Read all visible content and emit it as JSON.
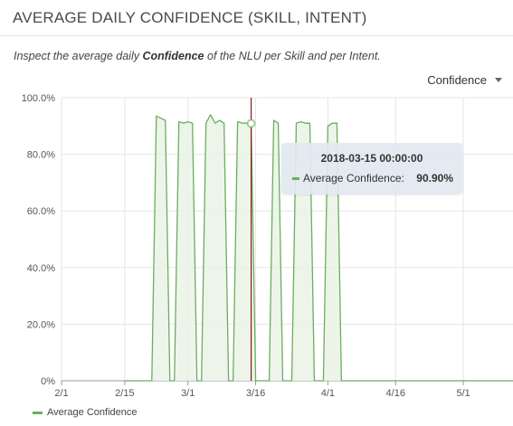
{
  "panel": {
    "title": "AVERAGE DAILY CONFIDENCE (SKILL, INTENT)",
    "description_pre": "Inspect the average daily ",
    "description_bold": "Confidence",
    "description_post": " of the NLU per Skill and per Intent."
  },
  "metric_selector": {
    "value": "Confidence"
  },
  "tooltip": {
    "date": "2018-03-15 00:00:00",
    "series_label": "Average Confidence:",
    "value": "90.90%"
  },
  "colors": {
    "series": "#6bae5f",
    "fill": "#eaf3e6",
    "hover_line": "#8b1a1a",
    "grid": "#e6e6e6"
  },
  "chart_data": {
    "type": "area",
    "title": "",
    "xlabel": "",
    "ylabel": "",
    "y_unit": "%",
    "ylim": [
      0,
      100
    ],
    "y_ticks": [
      0,
      20,
      40,
      60,
      80,
      100
    ],
    "y_tick_labels": [
      "0%",
      "20.0%",
      "40.0%",
      "60.0%",
      "80.0%",
      "100.0%"
    ],
    "x_range": [
      "2018-02-01",
      "2018-05-12"
    ],
    "x_ticks": [
      "2018-02-01",
      "2018-02-15",
      "2018-03-01",
      "2018-03-16",
      "2018-04-01",
      "2018-04-16",
      "2018-05-01"
    ],
    "x_tick_labels": [
      "2/1",
      "2/15",
      "3/1",
      "3/16",
      "4/1",
      "4/16",
      "5/1"
    ],
    "legend": "bottom-left",
    "grid": true,
    "hover_date": "2018-03-15",
    "series": [
      {
        "name": "Average Confidence",
        "points": [
          [
            "2018-02-15",
            0
          ],
          [
            "2018-02-21",
            0
          ],
          [
            "2018-02-22",
            93.5
          ],
          [
            "2018-02-24",
            92
          ],
          [
            "2018-02-25",
            0
          ],
          [
            "2018-02-26",
            0
          ],
          [
            "2018-02-27",
            91.5
          ],
          [
            "2018-02-28",
            91
          ],
          [
            "2018-03-01",
            91.5
          ],
          [
            "2018-03-02",
            91
          ],
          [
            "2018-03-03",
            0
          ],
          [
            "2018-03-04",
            0
          ],
          [
            "2018-03-05",
            91
          ],
          [
            "2018-03-06",
            94
          ],
          [
            "2018-03-07",
            91
          ],
          [
            "2018-03-08",
            92
          ],
          [
            "2018-03-09",
            91
          ],
          [
            "2018-03-10",
            0
          ],
          [
            "2018-03-11",
            0
          ],
          [
            "2018-03-12",
            91.5
          ],
          [
            "2018-03-13",
            91
          ],
          [
            "2018-03-14",
            91
          ],
          [
            "2018-03-15",
            90.9
          ],
          [
            "2018-03-16",
            0
          ],
          [
            "2018-03-19",
            0
          ],
          [
            "2018-03-20",
            92
          ],
          [
            "2018-03-21",
            91
          ],
          [
            "2018-03-22",
            0
          ],
          [
            "2018-03-24",
            0
          ],
          [
            "2018-03-25",
            91
          ],
          [
            "2018-03-26",
            91.5
          ],
          [
            "2018-03-27",
            91
          ],
          [
            "2018-03-28",
            91
          ],
          [
            "2018-03-29",
            0
          ],
          [
            "2018-03-31",
            0
          ],
          [
            "2018-04-01",
            90
          ],
          [
            "2018-04-02",
            91
          ],
          [
            "2018-04-03",
            91
          ],
          [
            "2018-04-04",
            0
          ],
          [
            "2018-05-12",
            0
          ]
        ]
      }
    ]
  }
}
